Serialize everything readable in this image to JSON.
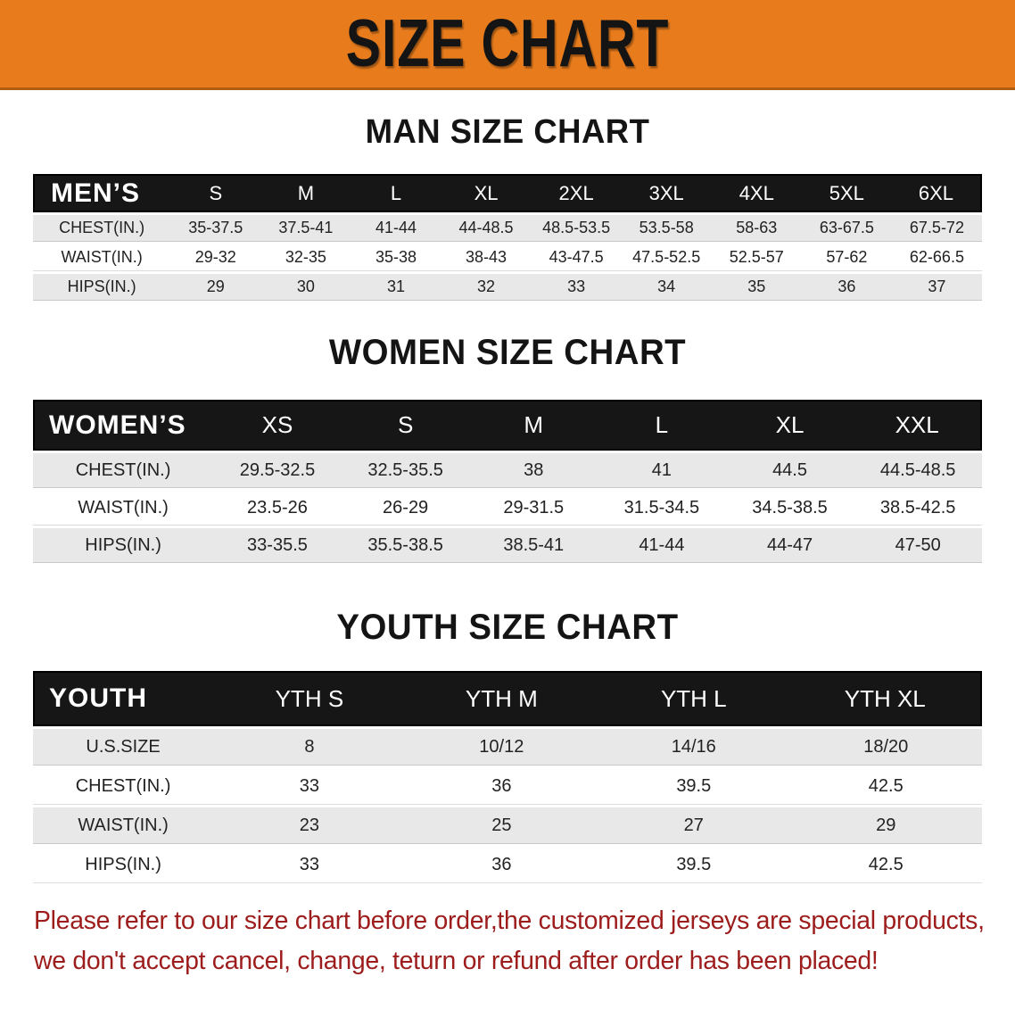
{
  "banner": {
    "title": "SIZE CHART",
    "bg_color": "#e87c1d",
    "text_color": "#141414"
  },
  "sections": [
    {
      "title": "MAN SIZE CHART",
      "header_label": "MEN’S",
      "columns": [
        "S",
        "M",
        "L",
        "XL",
        "2XL",
        "3XL",
        "4XL",
        "5XL",
        "6XL"
      ],
      "rows": [
        {
          "label": "CHEST(IN.)",
          "values": [
            "35-37.5",
            "37.5-41",
            "41-44",
            "44-48.5",
            "48.5-53.5",
            "53.5-58",
            "58-63",
            "63-67.5",
            "67.5-72"
          ]
        },
        {
          "label": "WAIST(IN.)",
          "values": [
            "29-32",
            "32-35",
            "35-38",
            "38-43",
            "43-47.5",
            "47.5-52.5",
            "52.5-57",
            "57-62",
            "62-66.5"
          ]
        },
        {
          "label": "HIPS(IN.)",
          "values": [
            "29",
            "30",
            "31",
            "32",
            "33",
            "34",
            "35",
            "36",
            "37"
          ]
        }
      ]
    },
    {
      "title": "WOMEN SIZE CHART",
      "header_label": "WOMEN’S",
      "columns": [
        "XS",
        "S",
        "M",
        "L",
        "XL",
        "XXL"
      ],
      "rows": [
        {
          "label": "CHEST(IN.)",
          "values": [
            "29.5-32.5",
            "32.5-35.5",
            "38",
            "41",
            "44.5",
            "44.5-48.5"
          ]
        },
        {
          "label": "WAIST(IN.)",
          "values": [
            "23.5-26",
            "26-29",
            "29-31.5",
            "31.5-34.5",
            "34.5-38.5",
            "38.5-42.5"
          ]
        },
        {
          "label": "HIPS(IN.)",
          "values": [
            "33-35.5",
            "35.5-38.5",
            "38.5-41",
            "41-44",
            "44-47",
            "47-50"
          ]
        }
      ]
    },
    {
      "title": "YOUTH SIZE CHART",
      "header_label": "YOUTH",
      "columns": [
        "YTH S",
        "YTH M",
        "YTH L",
        "YTH XL"
      ],
      "rows": [
        {
          "label": "U.S.SIZE",
          "values": [
            "8",
            "10/12",
            "14/16",
            "18/20"
          ]
        },
        {
          "label": "CHEST(IN.)",
          "values": [
            "33",
            "36",
            "39.5",
            "42.5"
          ]
        },
        {
          "label": "WAIST(IN.)",
          "values": [
            "23",
            "25",
            "27",
            "29"
          ]
        },
        {
          "label": "HIPS(IN.)",
          "values": [
            "33",
            "36",
            "39.5",
            "42.5"
          ]
        }
      ]
    }
  ],
  "disclaimer": {
    "line1": "Please refer to our size chart before order,the customized jerseys are special products,",
    "line2": "we don't accept cancel, change, teturn or refund after order has been placed!",
    "color": "#9d1c1c"
  }
}
